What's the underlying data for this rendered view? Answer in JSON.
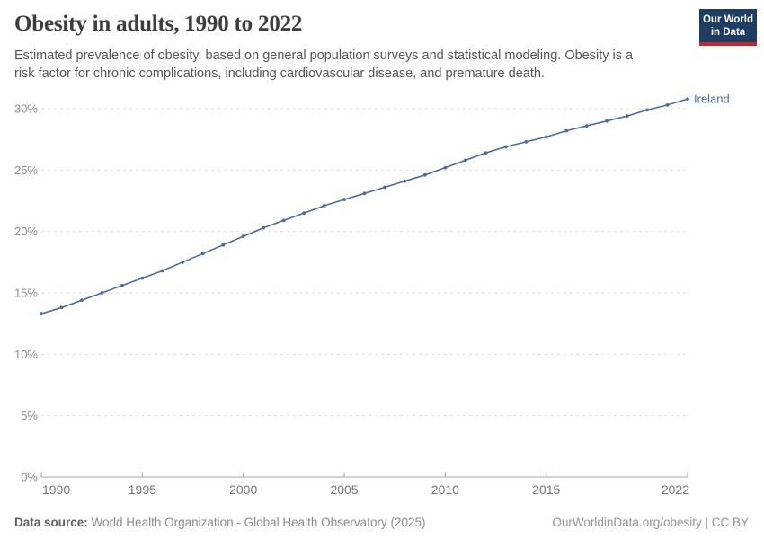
{
  "header": {
    "title": "Obesity in adults, 1990 to 2022",
    "subtitle": "Estimated prevalence of obesity, based on general population surveys and statistical modeling. Obesity is a risk factor for chronic complications, including cardiovascular disease, and premature death."
  },
  "logo": {
    "line1": "Our World",
    "line2": "in Data",
    "bg_color": "#1d3d63",
    "stripe_color": "#c1272d"
  },
  "chart_data": {
    "type": "line",
    "title": "Obesity in adults, 1990 to 2022",
    "unit": "%",
    "x": [
      1990,
      1991,
      1992,
      1993,
      1994,
      1995,
      1996,
      1997,
      1998,
      1999,
      2000,
      2001,
      2002,
      2003,
      2004,
      2005,
      2006,
      2007,
      2008,
      2009,
      2010,
      2011,
      2012,
      2013,
      2014,
      2015,
      2016,
      2017,
      2018,
      2019,
      2020,
      2021,
      2022
    ],
    "series": [
      {
        "name": "Ireland",
        "color": "#4c6a9c",
        "values": [
          13.3,
          13.8,
          14.4,
          15.0,
          15.6,
          16.2,
          16.8,
          17.5,
          18.2,
          18.9,
          19.6,
          20.3,
          20.9,
          21.5,
          22.1,
          22.6,
          23.1,
          23.6,
          24.1,
          24.6,
          25.2,
          25.8,
          26.4,
          26.9,
          27.3,
          27.7,
          28.2,
          28.6,
          29.0,
          29.4,
          29.9,
          30.3,
          30.8
        ]
      }
    ],
    "ylim": [
      0,
      31
    ],
    "xlim": [
      1990,
      2022
    ],
    "y_ticks": [
      0,
      5,
      10,
      15,
      20,
      25,
      30
    ],
    "y_tick_labels": [
      "0%",
      "5%",
      "10%",
      "15%",
      "20%",
      "25%",
      "30%"
    ],
    "x_ticks": [
      1990,
      1995,
      2000,
      2005,
      2010,
      2015,
      2022
    ],
    "grid": "horizontal-dashed",
    "legend_position": "end-of-line-label",
    "marker": "dot"
  },
  "footer": {
    "datasource_label": "Data source:",
    "datasource_value": "World Health Organization - Global Health Observatory (2025)",
    "credit": "OurWorldinData.org/obesity | CC BY"
  },
  "colors": {
    "line": "#4c6a9c",
    "grid": "#dedede",
    "axis": "#a3a3a3",
    "y_tick_label": "#8c8c8c",
    "x_tick_label": "#757575"
  }
}
